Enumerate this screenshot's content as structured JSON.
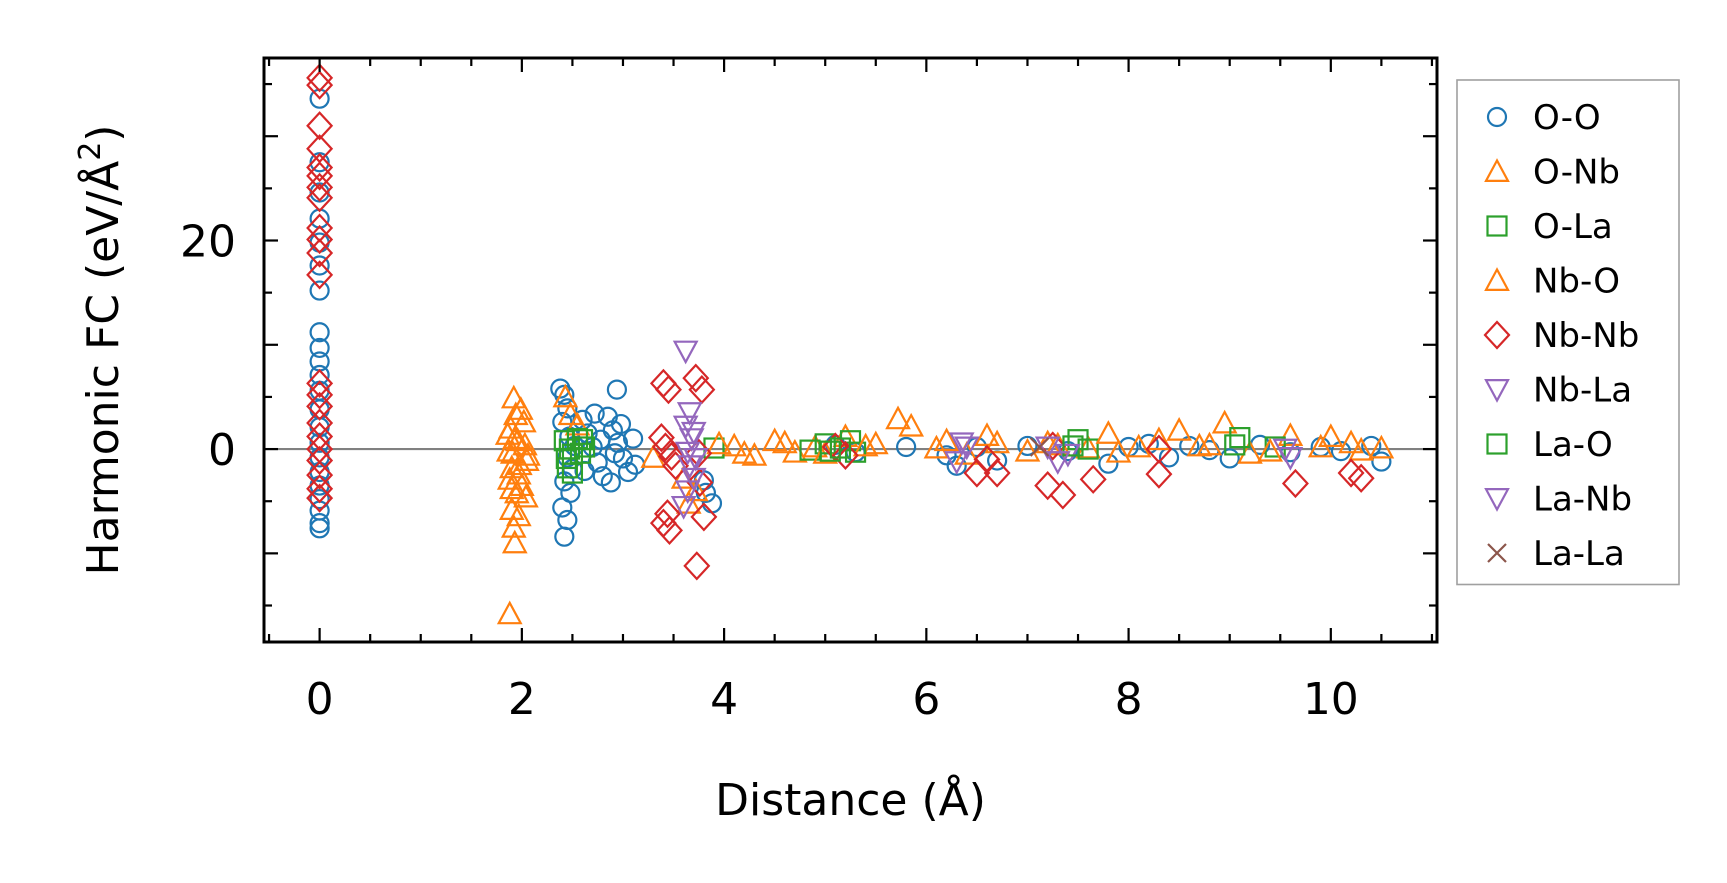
{
  "chart_data": {
    "type": "scatter",
    "xlabel": "Distance (Å)",
    "ylabel_main": "Harmonic FC (eV/Å",
    "ylabel_sup": "2",
    "ylabel_close": ")",
    "xlim": [
      -0.55,
      11.05
    ],
    "ylim": [
      -18.5,
      37.5
    ],
    "x_ticks": [
      0,
      2,
      4,
      6,
      8,
      10
    ],
    "x_tick_labels": [
      "0",
      "2",
      "4",
      "6",
      "8",
      "10"
    ],
    "y_ticks": [
      0,
      20
    ],
    "y_tick_labels": [
      "0",
      "20"
    ],
    "grid": false,
    "zero_line": true,
    "legend_position": "outside-right",
    "series": [
      {
        "name": "O-O",
        "marker": "circle",
        "color": "#1f77b4",
        "points": [
          [
            0,
            33.6
          ],
          [
            0,
            27.5
          ],
          [
            0,
            24.6
          ],
          [
            0,
            22.1
          ],
          [
            0,
            19.8
          ],
          [
            0,
            17.6
          ],
          [
            0,
            15.2
          ],
          [
            0,
            11.2
          ],
          [
            0,
            9.7
          ],
          [
            0,
            8.4
          ],
          [
            0,
            7.1
          ],
          [
            0,
            5.6
          ],
          [
            0,
            3.8
          ],
          [
            0,
            2.1
          ],
          [
            0,
            0.6
          ],
          [
            0,
            -0.8
          ],
          [
            0,
            -2.2
          ],
          [
            0,
            -3.5
          ],
          [
            0,
            -4.8
          ],
          [
            0,
            -5.9
          ],
          [
            0,
            -7.1
          ],
          [
            0,
            -7.6
          ],
          [
            2.38,
            5.8
          ],
          [
            2.42,
            5.2
          ],
          [
            2.45,
            3.9
          ],
          [
            2.4,
            2.6
          ],
          [
            2.47,
            1.2
          ],
          [
            2.52,
            0.3
          ],
          [
            2.45,
            -0.8
          ],
          [
            2.5,
            -1.9
          ],
          [
            2.42,
            -3.1
          ],
          [
            2.48,
            -4.2
          ],
          [
            2.4,
            -5.6
          ],
          [
            2.45,
            -6.8
          ],
          [
            2.42,
            -8.4
          ],
          [
            2.6,
            2.8
          ],
          [
            2.65,
            1.5
          ],
          [
            2.7,
            0.2
          ],
          [
            2.75,
            -1.3
          ],
          [
            2.8,
            -2.6
          ],
          [
            2.85,
            3.1
          ],
          [
            2.9,
            1.8
          ],
          [
            2.95,
            0.6
          ],
          [
            3.0,
            -0.9
          ],
          [
            3.05,
            -2.2
          ],
          [
            2.72,
            3.4
          ],
          [
            2.88,
            -3.2
          ],
          [
            2.98,
            2.4
          ],
          [
            3.1,
            1.0
          ],
          [
            3.12,
            -1.5
          ],
          [
            2.62,
            -2.1
          ],
          [
            2.78,
            0.9
          ],
          [
            2.92,
            -0.4
          ],
          [
            2.94,
            5.7
          ],
          [
            3.82,
            -4.2
          ],
          [
            3.88,
            -5.2
          ],
          [
            3.8,
            -3.0
          ],
          [
            5.1,
            0.4
          ],
          [
            5.3,
            -0.3
          ],
          [
            5.8,
            0.2
          ],
          [
            6.2,
            -0.6
          ],
          [
            6.3,
            -1.6
          ],
          [
            6.5,
            0.2
          ],
          [
            6.7,
            -1.1
          ],
          [
            7.0,
            0.3
          ],
          [
            7.4,
            -0.2
          ],
          [
            7.8,
            -1.4
          ],
          [
            8.0,
            0.2
          ],
          [
            8.2,
            0.5
          ],
          [
            8.4,
            -0.8
          ],
          [
            8.6,
            0.3
          ],
          [
            8.8,
            -0.1
          ],
          [
            9.0,
            -0.9
          ],
          [
            9.3,
            0.4
          ],
          [
            9.6,
            -0.3
          ],
          [
            9.9,
            0.2
          ],
          [
            10.1,
            -0.2
          ],
          [
            10.4,
            0.3
          ],
          [
            10.5,
            -1.2
          ]
        ]
      },
      {
        "name": "O-Nb",
        "marker": "triangle-up",
        "color": "#ff7f0e",
        "points": [
          [
            1.88,
            -15.8
          ],
          [
            1.93,
            -9.0
          ],
          [
            1.92,
            -7.5
          ],
          [
            1.9,
            -5.8
          ],
          [
            1.95,
            -4.2
          ],
          [
            1.88,
            -2.9
          ],
          [
            1.98,
            -1.5
          ],
          [
            1.91,
            -0.4
          ],
          [
            1.96,
            0.8
          ],
          [
            1.89,
            2.0
          ],
          [
            1.94,
            3.3
          ],
          [
            1.92,
            4.9
          ],
          [
            2.0,
            -3.5
          ],
          [
            2.05,
            -1.1
          ],
          [
            1.86,
            1.4
          ],
          [
            2.02,
            2.6
          ],
          [
            1.97,
            -6.4
          ],
          [
            1.87,
            -0.2
          ],
          [
            2.43,
            5.0
          ],
          [
            2.48,
            3.3
          ],
          [
            2.55,
            2.3
          ],
          [
            3.3,
            -0.8
          ],
          [
            3.6,
            -2.8
          ],
          [
            3.65,
            -5.2
          ],
          [
            3.72,
            -4.0
          ],
          [
            4.1,
            0.3
          ],
          [
            4.3,
            -0.6
          ],
          [
            4.5,
            0.8
          ],
          [
            4.7,
            -0.3
          ],
          [
            4.9,
            0.2
          ],
          [
            5.2,
            1.2
          ],
          [
            5.5,
            0.5
          ],
          [
            5.72,
            2.9
          ],
          [
            5.85,
            2.2
          ],
          [
            6.1,
            0.1
          ],
          [
            6.4,
            -0.5
          ],
          [
            6.7,
            0.6
          ],
          [
            7.0,
            -0.2
          ],
          [
            7.3,
            0.4
          ],
          [
            7.6,
            0.1
          ],
          [
            7.9,
            -0.3
          ],
          [
            8.3,
            0.9
          ],
          [
            8.5,
            1.8
          ],
          [
            8.7,
            0.3
          ],
          [
            8.95,
            2.5
          ],
          [
            9.2,
            -0.4
          ],
          [
            9.6,
            1.3
          ],
          [
            9.9,
            0.2
          ],
          [
            10.2,
            0.6
          ],
          [
            10.5,
            0.1
          ]
        ]
      },
      {
        "name": "O-La",
        "marker": "square",
        "color": "#2ca02c",
        "points": [
          [
            2.42,
            0.8
          ],
          [
            2.47,
            0.0
          ],
          [
            2.44,
            -0.9
          ],
          [
            2.5,
            -2.3
          ],
          [
            2.55,
            1.0
          ],
          [
            2.58,
            -0.4
          ],
          [
            2.62,
            0.2
          ],
          [
            2.45,
            -1.8
          ],
          [
            3.9,
            0.1
          ],
          [
            4.85,
            -0.1
          ],
          [
            5.0,
            0.5
          ],
          [
            5.25,
            0.8
          ],
          [
            5.3,
            -0.3
          ],
          [
            7.5,
            0.9
          ],
          [
            7.6,
            0.0
          ],
          [
            9.1,
            1.1
          ],
          [
            9.45,
            0.2
          ]
        ]
      },
      {
        "name": "Nb-O",
        "marker": "triangle-up",
        "color": "#ff7f0e",
        "points": [
          [
            1.9,
            -3.8
          ],
          [
            1.97,
            -2.4
          ],
          [
            2.03,
            0.4
          ],
          [
            1.93,
            1.0
          ],
          [
            2.06,
            -0.6
          ],
          [
            1.99,
            3.8
          ],
          [
            1.9,
            -1.8
          ],
          [
            2.04,
            -4.6
          ],
          [
            3.95,
            0.5
          ],
          [
            4.2,
            -0.4
          ],
          [
            4.6,
            0.6
          ],
          [
            5.0,
            -0.4
          ],
          [
            5.4,
            0.3
          ],
          [
            6.2,
            0.8
          ],
          [
            6.6,
            1.3
          ],
          [
            7.2,
            0.6
          ],
          [
            7.8,
            1.5
          ],
          [
            8.1,
            0.2
          ],
          [
            8.8,
            0.4
          ],
          [
            9.4,
            -0.2
          ],
          [
            10.0,
            1.2
          ],
          [
            10.3,
            -0.1
          ]
        ]
      },
      {
        "name": "Nb-Nb",
        "marker": "diamond",
        "color": "#d62728",
        "points": [
          [
            0,
            35.6
          ],
          [
            0,
            34.9
          ],
          [
            0,
            31.0
          ],
          [
            0,
            28.8
          ],
          [
            0,
            27.0
          ],
          [
            0,
            26.2
          ],
          [
            0,
            25.1
          ],
          [
            0,
            24.1
          ],
          [
            0,
            21.2
          ],
          [
            0,
            20.1
          ],
          [
            0,
            18.8
          ],
          [
            0,
            16.7
          ],
          [
            0,
            6.3
          ],
          [
            0,
            5.2
          ],
          [
            0,
            4.1
          ],
          [
            0,
            2.5
          ],
          [
            0,
            1.2
          ],
          [
            0,
            0.0
          ],
          [
            0,
            -1.1
          ],
          [
            0,
            -2.5
          ],
          [
            0,
            -3.8
          ],
          [
            0,
            -4.7
          ],
          [
            3.4,
            6.3
          ],
          [
            3.45,
            5.7
          ],
          [
            3.38,
            1.1
          ],
          [
            3.42,
            0.2
          ],
          [
            3.48,
            -0.7
          ],
          [
            3.52,
            -1.6
          ],
          [
            3.44,
            -6.2
          ],
          [
            3.46,
            -7.8
          ],
          [
            3.4,
            -7.1
          ],
          [
            3.72,
            6.8
          ],
          [
            3.78,
            5.7
          ],
          [
            3.75,
            -0.4
          ],
          [
            3.8,
            -6.5
          ],
          [
            3.76,
            -3.2
          ],
          [
            3.73,
            -11.2
          ],
          [
            5.1,
            0.2
          ],
          [
            5.2,
            -0.6
          ],
          [
            6.5,
            -2.3
          ],
          [
            6.6,
            -1.0
          ],
          [
            6.7,
            -2.3
          ],
          [
            7.2,
            -3.5
          ],
          [
            7.25,
            0.3
          ],
          [
            7.35,
            -4.4
          ],
          [
            7.65,
            -2.9
          ],
          [
            8.3,
            -2.4
          ],
          [
            8.3,
            0.0
          ],
          [
            9.65,
            -3.3
          ],
          [
            10.2,
            -2.3
          ],
          [
            10.3,
            -2.8
          ]
        ]
      },
      {
        "name": "Nb-La",
        "marker": "triangle-down",
        "color": "#9467bd",
        "points": [
          [
            3.62,
            9.4
          ],
          [
            3.66,
            3.5
          ],
          [
            3.62,
            2.2
          ],
          [
            3.68,
            1.0
          ],
          [
            3.64,
            -0.3
          ],
          [
            3.66,
            -1.6
          ],
          [
            3.7,
            -2.8
          ],
          [
            3.64,
            -4.0
          ],
          [
            3.6,
            -5.5
          ],
          [
            6.3,
            -1.2
          ],
          [
            6.4,
            0.2
          ],
          [
            7.2,
            0.2
          ],
          [
            7.4,
            -0.5
          ],
          [
            9.55,
            0.0
          ]
        ]
      },
      {
        "name": "La-O",
        "marker": "square",
        "color": "#2ca02c",
        "points": [
          [
            2.5,
            -0.5
          ],
          [
            2.6,
            0.9
          ],
          [
            5.05,
            -0.2
          ],
          [
            5.15,
            0.1
          ],
          [
            7.45,
            0.3
          ],
          [
            9.05,
            0.4
          ]
        ]
      },
      {
        "name": "La-Nb",
        "marker": "triangle-down",
        "color": "#9467bd",
        "points": [
          [
            3.7,
            1.6
          ],
          [
            3.72,
            -0.9
          ],
          [
            6.35,
            0.6
          ],
          [
            7.3,
            -1.2
          ],
          [
            9.6,
            -0.8
          ]
        ]
      },
      {
        "name": "La-La",
        "marker": "x",
        "color": "#8c564b",
        "points": [
          [
            7.12,
            0.2
          ]
        ]
      }
    ]
  }
}
